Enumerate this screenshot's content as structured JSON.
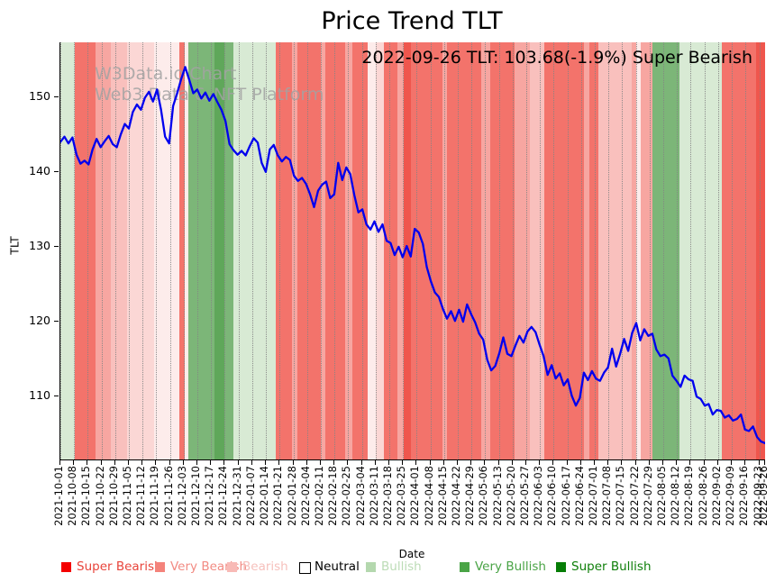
{
  "title": "Price Trend TLT",
  "annotation": "2022-09-26 TLT: 103.68(-1.9%) Super Bearish",
  "watermark": {
    "line1": "W3Data.io Chart",
    "line2": "Web3 Data & NFT Platform"
  },
  "chart_data": {
    "type": "line",
    "title": "Price Trend TLT",
    "xlabel": "Date",
    "ylabel": "TLT",
    "ylim": [
      101.5,
      157.2
    ],
    "yticks": [
      110,
      120,
      130,
      140,
      150
    ],
    "grid": "vertical-dotted",
    "legend_position": "bottom",
    "line_color": "#0000ee",
    "line_width": 2.3,
    "xticks": [
      {
        "label": "2021-10-01",
        "f": 0.0
      },
      {
        "label": "2021-10-08",
        "f": 0.0194
      },
      {
        "label": "2021-10-15",
        "f": 0.0389
      },
      {
        "label": "2021-10-22",
        "f": 0.0583
      },
      {
        "label": "2021-10-29",
        "f": 0.0778
      },
      {
        "label": "2021-11-05",
        "f": 0.0972
      },
      {
        "label": "2021-11-12",
        "f": 0.1167
      },
      {
        "label": "2021-11-19",
        "f": 0.1361
      },
      {
        "label": "2021-11-26",
        "f": 0.1556
      },
      {
        "label": "2021-12-03",
        "f": 0.175
      },
      {
        "label": "2021-12-10",
        "f": 0.1944
      },
      {
        "label": "2021-12-17",
        "f": 0.2139
      },
      {
        "label": "2021-12-24",
        "f": 0.2333
      },
      {
        "label": "2021-12-31",
        "f": 0.2528
      },
      {
        "label": "2022-01-07",
        "f": 0.2722
      },
      {
        "label": "2022-01-14",
        "f": 0.2917
      },
      {
        "label": "2022-01-21",
        "f": 0.3111
      },
      {
        "label": "2022-01-28",
        "f": 0.3306
      },
      {
        "label": "2022-02-04",
        "f": 0.35
      },
      {
        "label": "2022-02-11",
        "f": 0.3694
      },
      {
        "label": "2022-02-18",
        "f": 0.3889
      },
      {
        "label": "2022-02-25",
        "f": 0.4083
      },
      {
        "label": "2022-03-04",
        "f": 0.4278
      },
      {
        "label": "2022-03-11",
        "f": 0.4472
      },
      {
        "label": "2022-03-18",
        "f": 0.4667
      },
      {
        "label": "2022-03-25",
        "f": 0.4861
      },
      {
        "label": "2022-04-01",
        "f": 0.5056
      },
      {
        "label": "2022-04-08",
        "f": 0.525
      },
      {
        "label": "2022-04-15",
        "f": 0.5444
      },
      {
        "label": "2022-04-22",
        "f": 0.5639
      },
      {
        "label": "2022-04-29",
        "f": 0.5833
      },
      {
        "label": "2022-05-06",
        "f": 0.6028
      },
      {
        "label": "2022-05-13",
        "f": 0.6222
      },
      {
        "label": "2022-05-20",
        "f": 0.6417
      },
      {
        "label": "2022-05-27",
        "f": 0.6611
      },
      {
        "label": "2022-06-03",
        "f": 0.6806
      },
      {
        "label": "2022-06-10",
        "f": 0.7
      },
      {
        "label": "2022-06-17",
        "f": 0.7194
      },
      {
        "label": "2022-06-24",
        "f": 0.7389
      },
      {
        "label": "2022-07-01",
        "f": 0.7583
      },
      {
        "label": "2022-07-08",
        "f": 0.7778
      },
      {
        "label": "2022-07-15",
        "f": 0.7972
      },
      {
        "label": "2022-07-22",
        "f": 0.8167
      },
      {
        "label": "2022-07-29",
        "f": 0.8361
      },
      {
        "label": "2022-08-05",
        "f": 0.8556
      },
      {
        "label": "2022-08-12",
        "f": 0.875
      },
      {
        "label": "2022-08-19",
        "f": 0.8944
      },
      {
        "label": "2022-08-26",
        "f": 0.9139
      },
      {
        "label": "2022-09-02",
        "f": 0.9333
      },
      {
        "label": "2022-09-09",
        "f": 0.9528
      },
      {
        "label": "2022-09-16",
        "f": 0.9722
      },
      {
        "label": "2022-09-23",
        "f": 0.9917
      },
      {
        "label": "2022-09-26",
        "f": 1.0
      }
    ],
    "series": [
      {
        "name": "TLT",
        "values": [
          143.9,
          144.6,
          143.7,
          144.5,
          142.2,
          141.0,
          141.4,
          140.9,
          142.9,
          144.3,
          143.2,
          144.0,
          144.7,
          143.6,
          143.2,
          144.9,
          146.3,
          145.7,
          147.9,
          148.9,
          148.2,
          149.8,
          150.6,
          149.3,
          150.9,
          148.2,
          144.6,
          143.7,
          148.7,
          150.4,
          152.3,
          153.9,
          152.2,
          150.4,
          150.9,
          149.7,
          150.5,
          149.4,
          150.3,
          149.2,
          148.2,
          146.7,
          143.6,
          142.8,
          142.2,
          142.7,
          142.1,
          143.3,
          144.4,
          143.8,
          141.1,
          139.9,
          142.9,
          143.5,
          142.1,
          141.3,
          141.9,
          141.5,
          139.4,
          138.7,
          139.1,
          138.3,
          136.9,
          135.2,
          137.4,
          138.2,
          138.6,
          136.4,
          136.9,
          141.1,
          138.8,
          140.5,
          139.6,
          136.8,
          134.5,
          134.9,
          132.9,
          132.2,
          133.3,
          131.9,
          132.9,
          130.7,
          130.4,
          128.8,
          129.9,
          128.5,
          130.0,
          128.6,
          132.3,
          131.8,
          130.3,
          127.2,
          125.3,
          123.8,
          123.2,
          121.6,
          120.3,
          121.3,
          120.0,
          121.5,
          119.9,
          122.2,
          120.9,
          119.8,
          118.3,
          117.5,
          114.8,
          113.4,
          114.0,
          115.7,
          117.8,
          115.6,
          115.3,
          116.7,
          118.0,
          117.1,
          118.6,
          119.2,
          118.5,
          116.8,
          115.3,
          112.8,
          114.1,
          112.3,
          113.0,
          111.4,
          112.2,
          110.0,
          108.7,
          109.7,
          113.1,
          112.1,
          113.3,
          112.3,
          112.0,
          113.1,
          113.8,
          116.3,
          113.9,
          115.6,
          117.6,
          116.0,
          118.4,
          119.7,
          117.4,
          118.9,
          118.0,
          118.3,
          116.2,
          115.3,
          115.5,
          115.0,
          112.7,
          112.0,
          111.2,
          112.7,
          112.2,
          112.0,
          109.9,
          109.6,
          108.7,
          108.9,
          107.5,
          108.1,
          108.0,
          107.1,
          107.4,
          106.7,
          106.9,
          107.5,
          105.5,
          105.3,
          105.9,
          104.5,
          103.9,
          103.68
        ]
      }
    ],
    "band_colors": {
      "super_bearish": "#ef564d",
      "very_bearish": "#f3736b",
      "bearish": "#f7a6a1",
      "bearish_light": "#f9c0bd",
      "bearish_faint": "#fbd7d5",
      "bearish_pale": "#fdeceb",
      "neutral": "#ffffff",
      "bullish_pale": "#d8ead4",
      "bullish": "#c5e1c0",
      "very_bullish": "#7cb678",
      "super_bullish": "#5fa75a"
    },
    "background_bands": [
      {
        "s": 0.0,
        "e": 0.02,
        "c": "bullish_pale"
      },
      {
        "s": 0.02,
        "e": 0.05,
        "c": "very_bearish"
      },
      {
        "s": 0.05,
        "e": 0.072,
        "c": "bearish"
      },
      {
        "s": 0.072,
        "e": 0.095,
        "c": "bearish_light"
      },
      {
        "s": 0.095,
        "e": 0.133,
        "c": "bearish_faint"
      },
      {
        "s": 0.133,
        "e": 0.169,
        "c": "bearish_pale"
      },
      {
        "s": 0.169,
        "e": 0.176,
        "c": "very_bearish"
      },
      {
        "s": 0.176,
        "e": 0.182,
        "c": "bearish_pale"
      },
      {
        "s": 0.182,
        "e": 0.219,
        "c": "very_bullish"
      },
      {
        "s": 0.219,
        "e": 0.233,
        "c": "super_bullish"
      },
      {
        "s": 0.233,
        "e": 0.246,
        "c": "very_bullish"
      },
      {
        "s": 0.246,
        "e": 0.306,
        "c": "bullish_pale"
      },
      {
        "s": 0.306,
        "e": 0.329,
        "c": "very_bearish"
      },
      {
        "s": 0.329,
        "e": 0.336,
        "c": "bearish"
      },
      {
        "s": 0.336,
        "e": 0.37,
        "c": "very_bearish"
      },
      {
        "s": 0.37,
        "e": 0.376,
        "c": "bearish"
      },
      {
        "s": 0.376,
        "e": 0.404,
        "c": "very_bearish"
      },
      {
        "s": 0.404,
        "e": 0.414,
        "c": "bearish"
      },
      {
        "s": 0.414,
        "e": 0.436,
        "c": "very_bearish"
      },
      {
        "s": 0.436,
        "e": 0.448,
        "c": "bearish_pale"
      },
      {
        "s": 0.448,
        "e": 0.459,
        "c": "bearish_faint"
      },
      {
        "s": 0.459,
        "e": 0.478,
        "c": "very_bearish"
      },
      {
        "s": 0.478,
        "e": 0.487,
        "c": "bearish"
      },
      {
        "s": 0.487,
        "e": 0.497,
        "c": "super_bearish"
      },
      {
        "s": 0.497,
        "e": 0.542,
        "c": "very_bearish"
      },
      {
        "s": 0.542,
        "e": 0.549,
        "c": "bearish"
      },
      {
        "s": 0.549,
        "e": 0.597,
        "c": "very_bearish"
      },
      {
        "s": 0.597,
        "e": 0.61,
        "c": "bearish"
      },
      {
        "s": 0.61,
        "e": 0.644,
        "c": "very_bearish"
      },
      {
        "s": 0.644,
        "e": 0.666,
        "c": "bearish"
      },
      {
        "s": 0.666,
        "e": 0.687,
        "c": "bearish_light"
      },
      {
        "s": 0.687,
        "e": 0.743,
        "c": "very_bearish"
      },
      {
        "s": 0.743,
        "e": 0.751,
        "c": "bearish"
      },
      {
        "s": 0.751,
        "e": 0.763,
        "c": "very_bearish"
      },
      {
        "s": 0.763,
        "e": 0.811,
        "c": "bearish_light"
      },
      {
        "s": 0.811,
        "e": 0.817,
        "c": "bearish"
      },
      {
        "s": 0.817,
        "e": 0.824,
        "c": "bearish_pale"
      },
      {
        "s": 0.824,
        "e": 0.84,
        "c": "bearish"
      },
      {
        "s": 0.84,
        "e": 0.879,
        "c": "very_bullish"
      },
      {
        "s": 0.879,
        "e": 0.939,
        "c": "bullish_pale"
      },
      {
        "s": 0.939,
        "e": 0.987,
        "c": "very_bearish"
      },
      {
        "s": 0.987,
        "e": 1.0,
        "c": "super_bearish"
      }
    ],
    "legend": [
      {
        "label": "Super Bearish",
        "swatch": "#f40000",
        "text_color": "#e8443b",
        "x": 68,
        "border": false
      },
      {
        "label": "Very Bearish",
        "swatch": "#f4837b",
        "text_color": "#f28b83",
        "x": 172,
        "border": false
      },
      {
        "label": "Bearish",
        "swatch": "#f8bab6",
        "text_color": "#f6c0bc",
        "x": 252,
        "border": false
      },
      {
        "label": "Neutral",
        "swatch": "#ffffff",
        "text_color": "#000000",
        "x": 332,
        "border": true
      },
      {
        "label": "Bullish",
        "swatch": "#b4d8ae",
        "text_color": "#bcdcb6",
        "x": 406,
        "border": false
      },
      {
        "label": "Very Bullish",
        "swatch": "#4aa446",
        "text_color": "#4aa446",
        "x": 510,
        "border": false
      },
      {
        "label": "Super Bullish",
        "swatch": "#067d06",
        "text_color": "#0f7f0a",
        "x": 617,
        "border": false
      }
    ]
  }
}
